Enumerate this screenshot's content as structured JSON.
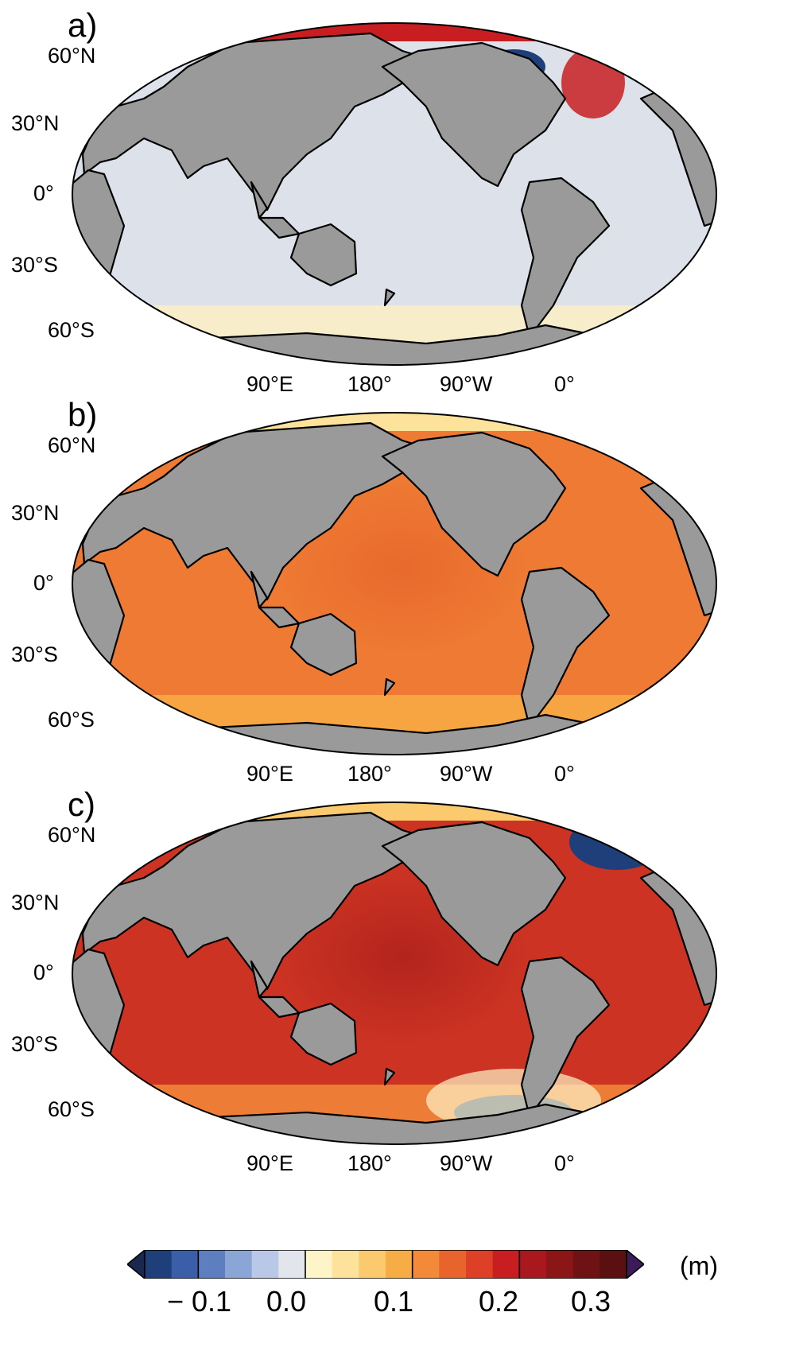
{
  "panels": [
    {
      "label": "a)",
      "lat_labels": [
        "60°N",
        "30°N",
        "0°",
        "30°S",
        "60°S"
      ],
      "lon_labels": [
        "90°E",
        "180°",
        "90°W",
        "0°"
      ]
    },
    {
      "label": "b)",
      "lat_labels": [
        "60°N",
        "30°N",
        "0°",
        "30°S",
        "60°S"
      ],
      "lon_labels": [
        "90°E",
        "180°",
        "90°W",
        "0°"
      ]
    },
    {
      "label": "c)",
      "lat_labels": [
        "60°N",
        "30°N",
        "0°",
        "30°S",
        "60°S"
      ],
      "lon_labels": [
        "90°E",
        "180°",
        "90°W",
        "0°"
      ]
    }
  ],
  "colorbar": {
    "unit": "(m)",
    "tick_labels": [
      "− 0.1",
      "0.0",
      "0.1",
      "0.2",
      "0.3"
    ],
    "range": [
      -0.15,
      0.3
    ],
    "colors": [
      "#1f3f7a",
      "#3a5fa8",
      "#5d7fbf",
      "#8ba5d6",
      "#b9c8e6",
      "#e2e6ec",
      "#fdf4c8",
      "#fde29b",
      "#fbc96e",
      "#f7ad45",
      "#f28a3a",
      "#e8642c",
      "#dd3f27",
      "#c81e22",
      "#a8181c",
      "#8c1518",
      "#6e1214",
      "#5a1010"
    ],
    "min_extend_color": "#1a2850",
    "max_extend_color": "#3d1a5a"
  },
  "map_colors": {
    "land": "#9a9a9a",
    "a_ocean": "#dde2ea",
    "a_margin": "#fbeec4",
    "b_ocean": "#ee7a33",
    "b_pacific_core": "#e86a2c",
    "c_ocean": "#cc3322",
    "c_pacific_core": "#b2241e"
  }
}
